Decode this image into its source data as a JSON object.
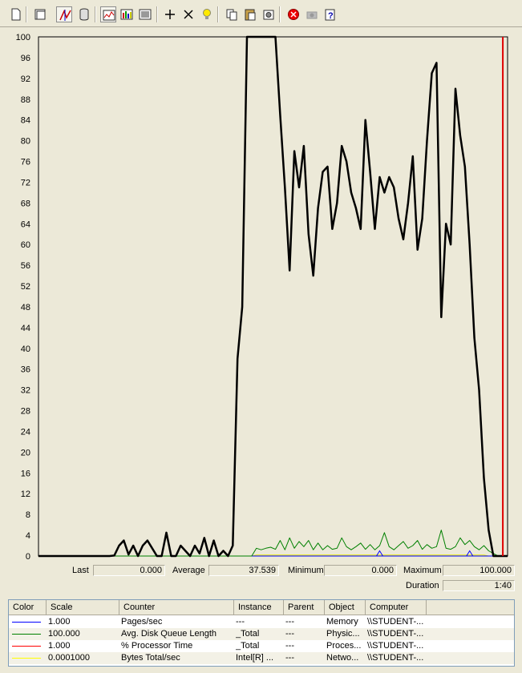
{
  "toolbar": {
    "buttons": [
      {
        "name": "new-counter-set-icon"
      },
      {
        "name": "clear-display-icon"
      },
      {
        "name": "view-current-activity-icon",
        "pressed": true
      },
      {
        "name": "view-log-data-icon"
      },
      {
        "name": "view-graph-icon",
        "pressed": true
      },
      {
        "name": "view-histogram-icon"
      },
      {
        "name": "view-report-icon"
      },
      {
        "name": "add-counter-icon"
      },
      {
        "name": "delete-counter-icon"
      },
      {
        "name": "highlight-icon"
      },
      {
        "name": "copy-properties-icon"
      },
      {
        "name": "paste-counter-list-icon"
      },
      {
        "name": "properties-icon"
      },
      {
        "name": "freeze-display-icon"
      },
      {
        "name": "update-data-icon"
      },
      {
        "name": "help-icon"
      }
    ]
  },
  "chart_data": {
    "type": "line",
    "ylim": [
      0,
      100
    ],
    "yticks": [
      "100",
      "96",
      "92",
      "88",
      "84",
      "80",
      "76",
      "72",
      "68",
      "64",
      "60",
      "56",
      "52",
      "48",
      "44",
      "40",
      "36",
      "32",
      "28",
      "24",
      "20",
      "16",
      "12",
      "8",
      "4",
      "0"
    ],
    "samples": 100,
    "current_sample": 98,
    "series": [
      {
        "color": "#000000",
        "highlighted": true,
        "values": [
          0,
          0,
          0,
          0,
          0,
          0,
          0,
          0,
          0,
          0,
          0,
          0,
          0,
          0,
          0,
          0,
          0.1,
          2,
          3,
          0.3,
          2,
          0,
          2,
          3,
          1.5,
          0,
          0,
          4.5,
          0,
          0,
          2,
          1,
          0,
          2,
          0.5,
          3.5,
          0,
          3,
          0,
          1,
          0,
          2,
          38,
          48,
          100,
          100,
          100,
          100,
          100,
          100,
          100,
          85,
          71,
          55,
          78,
          71,
          79,
          62,
          54,
          67,
          74,
          75,
          63,
          68,
          79,
          76,
          70,
          67,
          63,
          84,
          74,
          63,
          73,
          70,
          73,
          71,
          65,
          61,
          68,
          77,
          59,
          65,
          80,
          93,
          95,
          46,
          64,
          60,
          90,
          81,
          75,
          60,
          42,
          32,
          15,
          5,
          0,
          0,
          0,
          0
        ]
      },
      {
        "color": "#008000",
        "values": [
          0,
          0,
          0,
          0,
          0,
          0,
          0,
          0,
          0,
          0,
          0,
          0,
          0,
          0,
          0,
          0,
          0,
          0,
          0,
          0,
          0,
          0,
          0,
          0,
          0,
          0,
          0,
          0,
          0,
          0,
          0,
          0,
          0,
          0,
          0,
          0,
          0,
          0,
          0,
          0,
          0,
          0,
          0,
          0,
          0,
          0,
          1.5,
          1.2,
          1.5,
          1.7,
          1.3,
          3,
          1.2,
          3.5,
          1.5,
          2.8,
          1.8,
          3,
          1.2,
          2.5,
          1.2,
          2,
          1.3,
          1.5,
          3.5,
          1.8,
          1.2,
          1.8,
          2.5,
          1.3,
          2.2,
          1.2,
          2,
          4.5,
          1.8,
          1.2,
          2,
          2.8,
          1.5,
          2,
          3,
          1.3,
          2.2,
          1.5,
          1.8,
          5,
          1.5,
          1.3,
          1.8,
          3.5,
          2.2,
          3,
          1.8,
          1.2,
          2,
          1,
          0.5,
          0,
          0,
          0
        ]
      },
      {
        "color": "#0000ff",
        "values": [
          0,
          0,
          0,
          0,
          0,
          0,
          0,
          0,
          0,
          0,
          0,
          0,
          0,
          0,
          0,
          0,
          0,
          0,
          0,
          0,
          0,
          0,
          0,
          0,
          0,
          0,
          0,
          0,
          0,
          0,
          0,
          0,
          0,
          0,
          0,
          0,
          0,
          0,
          0,
          0,
          0,
          0,
          0,
          0,
          0,
          0,
          0,
          0,
          0,
          0,
          0,
          0,
          0,
          0,
          0,
          0,
          0,
          0,
          0,
          0,
          0,
          0,
          0,
          0,
          0,
          0,
          0,
          0,
          0,
          0,
          0,
          0,
          0,
          0,
          0,
          0,
          0,
          0,
          0,
          0,
          0,
          0,
          0,
          0,
          0,
          0,
          0,
          0,
          0,
          0,
          0,
          0,
          0,
          0,
          0,
          0,
          0,
          0,
          0,
          0
        ]
      },
      {
        "color": "#e8e800",
        "values": [
          0,
          0,
          0,
          0,
          0,
          0,
          0,
          0,
          0,
          0,
          0,
          0,
          0,
          0,
          0,
          0,
          0,
          0,
          0,
          0,
          0,
          0,
          0,
          0,
          0,
          0,
          0,
          0,
          0,
          0,
          0,
          0,
          0,
          0,
          0,
          0,
          0,
          0,
          0,
          0,
          0,
          0,
          0,
          0,
          0,
          0,
          0.2,
          0.2,
          0.2,
          0.2,
          0.2,
          0.2,
          0.2,
          0.2,
          0.2,
          0.2,
          0.2,
          0.2,
          0.2,
          0.2,
          0.2,
          0.2,
          0.2,
          0.2,
          0.2,
          0.2,
          0.2,
          0.2,
          0.2,
          0.2,
          0.2,
          0.2,
          0.2,
          0.2,
          0.2,
          0.2,
          0.2,
          0.2,
          0.2,
          0.2,
          0.2,
          0.2,
          0.2,
          0.2,
          0.2,
          0.2,
          0.2,
          0.2,
          0.2,
          0.2,
          0.2,
          0.2,
          0.2,
          0.2,
          0.2,
          0,
          0,
          0,
          0,
          0
        ]
      }
    ],
    "blue_spikes": [
      {
        "sample": 72,
        "value": 1
      },
      {
        "sample": 91,
        "value": 1
      }
    ]
  },
  "stats": {
    "last_label": "Last",
    "last_value": "0.000",
    "average_label": "Average",
    "average_value": "37.539",
    "minimum_label": "Minimum",
    "minimum_value": "0.000",
    "maximum_label": "Maximum",
    "maximum_value": "100.000",
    "duration_label": "Duration",
    "duration_value": "1:40"
  },
  "legend": {
    "headers": {
      "color": "Color",
      "scale": "Scale",
      "counter": "Counter",
      "instance": "Instance",
      "parent": "Parent",
      "object": "Object",
      "computer": "Computer"
    },
    "rows": [
      {
        "color": "#0000ff",
        "scale": "1.000",
        "counter": "Pages/sec",
        "instance": "---",
        "parent": "---",
        "object": "Memory",
        "computer": "\\\\STUDENT-..."
      },
      {
        "color": "#008000",
        "scale": "100.000",
        "counter": "Avg. Disk Queue Length",
        "instance": "_Total",
        "parent": "---",
        "object": "Physic...",
        "computer": "\\\\STUDENT-..."
      },
      {
        "color": "#ff0000",
        "scale": "1.000",
        "counter": "% Processor Time",
        "instance": "_Total",
        "parent": "---",
        "object": "Proces...",
        "computer": "\\\\STUDENT-..."
      },
      {
        "color": "#ffff00",
        "scale": "0.0001000",
        "counter": "Bytes Total/sec",
        "instance": "Intel[R] ...",
        "parent": "---",
        "object": "Netwo...",
        "computer": "\\\\STUDENT-..."
      }
    ]
  }
}
